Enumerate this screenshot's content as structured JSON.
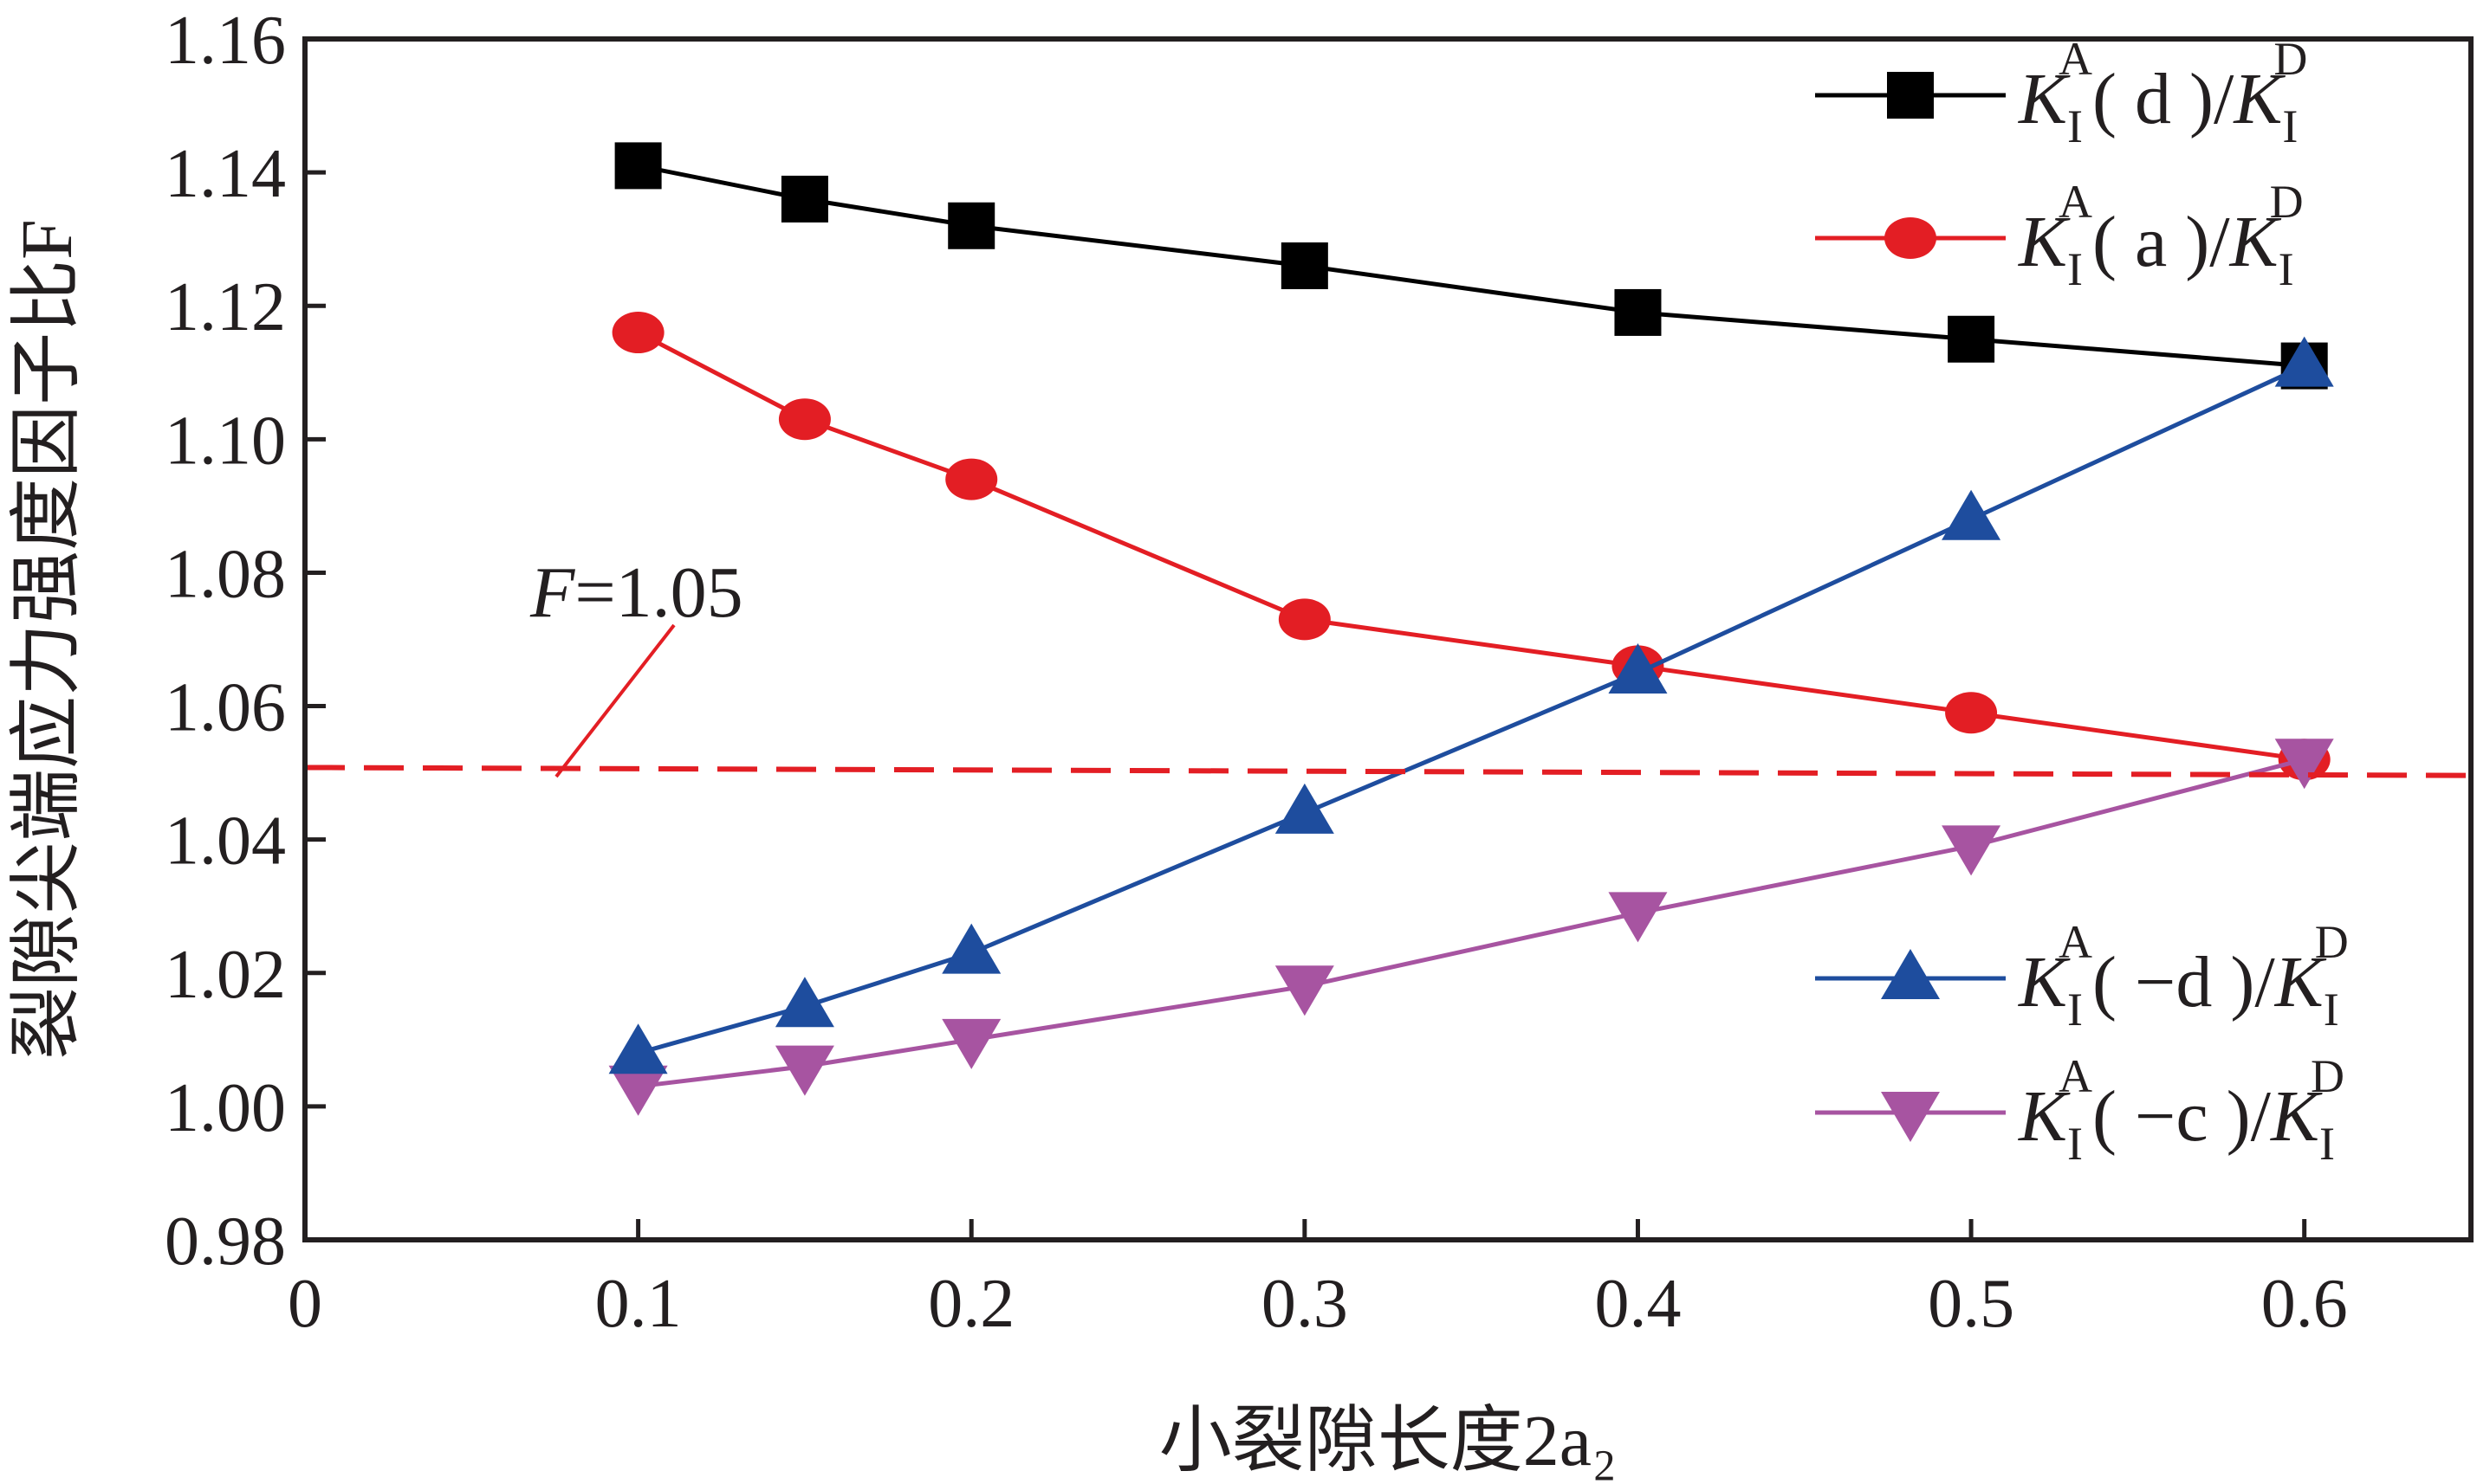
{
  "chart_data": {
    "type": "line",
    "xlabel": "小裂隙长度2a₂",
    "ylabel": "裂隙尖端应力强度因子比F",
    "xlim": [
      0,
      0.65
    ],
    "ylim": [
      0.98,
      1.16
    ],
    "x_ticks": [
      "0",
      "0.1",
      "0.2",
      "0.3",
      "0.4",
      "0.5",
      "0.6"
    ],
    "x_tick_values": [
      0,
      0.1,
      0.2,
      0.3,
      0.4,
      0.5,
      0.6
    ],
    "y_ticks": [
      "0.98",
      "1.00",
      "1.02",
      "1.04",
      "1.06",
      "1.08",
      "1.10",
      "1.12",
      "1.14",
      "1.16"
    ],
    "y_tick_values": [
      0.98,
      1.0,
      1.02,
      1.04,
      1.06,
      1.08,
      1.1,
      1.12,
      1.14,
      1.16
    ],
    "grid": false,
    "legend": "top-right and bottom-right",
    "x": [
      0.1,
      0.15,
      0.2,
      0.3,
      0.4,
      0.5,
      0.6
    ],
    "series": [
      {
        "name": "K_I^A( d )/K_I^D",
        "marker": "square",
        "color": "#000000",
        "values": [
          1.141,
          1.136,
          1.132,
          1.126,
          1.119,
          1.115,
          1.111
        ]
      },
      {
        "name": "K_I^A( a )/K_I^D",
        "marker": "circle",
        "color": "#e31e24",
        "values": [
          1.116,
          1.103,
          1.094,
          1.073,
          1.066,
          1.059,
          1.052
        ]
      },
      {
        "name": "K_I^A( −d )/K_I^D",
        "marker": "triangle-up",
        "color": "#1e4d9e",
        "values": [
          1.008,
          1.015,
          1.023,
          1.044,
          1.065,
          1.088,
          1.111
        ]
      },
      {
        "name": "K_I^A( −c )/K_I^D",
        "marker": "triangle-down",
        "color": "#a754a1",
        "values": [
          1.003,
          1.006,
          1.01,
          1.018,
          1.029,
          1.039,
          1.052
        ]
      }
    ],
    "reference_line": {
      "y": 1.05,
      "label": "F=1.05",
      "color": "#e31e24",
      "style": "dashed"
    },
    "legend_entries": [
      {
        "K": "K",
        "sub": "I",
        "sup": "A",
        "arg": "( d )",
        "slash": "/",
        "K2": "K",
        "sub2": "I",
        "sup2": "D"
      },
      {
        "K": "K",
        "sub": "I",
        "sup": "A",
        "arg": "( a )",
        "slash": "/",
        "K2": "K",
        "sub2": "I",
        "sup2": "D"
      },
      {
        "K": "K",
        "sub": "I",
        "sup": "A",
        "arg": "( −d )",
        "slash": "/",
        "K2": "K",
        "sub2": "I",
        "sup2": "D"
      },
      {
        "K": "K",
        "sub": "I",
        "sup": "A",
        "arg": "( −c )",
        "slash": "/",
        "K2": "K",
        "sub2": "I",
        "sup2": "D"
      }
    ]
  }
}
